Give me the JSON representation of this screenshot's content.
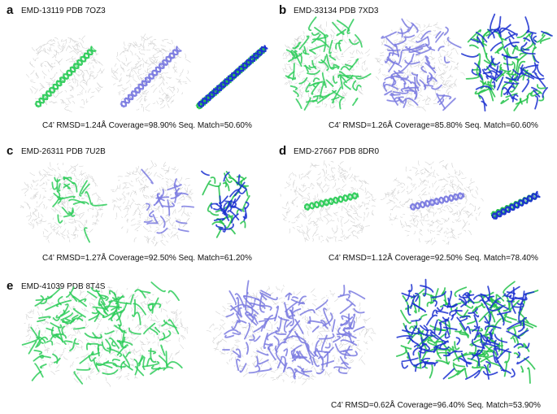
{
  "panels": [
    {
      "label": "a",
      "title": "EMD-13119  PDB 7OZ3",
      "metrics": "C4’ RMSD=1.24Å  Coverage=98.90%  Seq. Match=50.60%"
    },
    {
      "label": "b",
      "title": "EMD-33134  PDB 7XD3",
      "metrics": "C4’ RMSD=1.26Å  Coverage=85.80%  Seq. Match=60.60%"
    },
    {
      "label": "c",
      "title": "EMD-26311  PDB 7U2B",
      "metrics": "C4’ RMSD=1.27Å  Coverage=92.50%  Seq. Match=61.20%"
    },
    {
      "label": "d",
      "title": "EMD-27667  PDB 8DR0",
      "metrics": "C4’ RMSD=1.12Å  Coverage=92.50%  Seq. Match=78.40%"
    },
    {
      "label": "e",
      "title": "EMD-41039  PDB 8T4S",
      "metrics": "C4’ RMSD=0.62Å  Coverage=96.40%  Seq. Match=53.90%"
    }
  ],
  "colors": {
    "density": "#c8c8c8",
    "reference": "#2ecc5a",
    "predicted": "#7b7be0",
    "overlay_blue": "#1a2fd0",
    "overlay_green": "#22c24a"
  }
}
